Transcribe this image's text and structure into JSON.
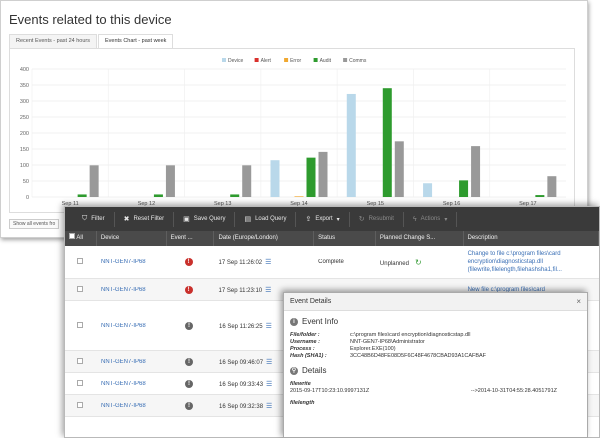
{
  "back_panel": {
    "title": "Events related to this device",
    "tabs": [
      {
        "label": "Recent Events - past 24 hours"
      },
      {
        "label": "Events Chart - past week"
      }
    ],
    "show_all_label": "Show all events fro"
  },
  "chart_data": {
    "type": "bar",
    "categories": [
      "Sep 11",
      "Sep 12",
      "Sep 13",
      "Sep 14",
      "Sep 15",
      "Sep 16",
      "Sep 17"
    ],
    "series": [
      {
        "name": "Device",
        "color": "#b9d8ea",
        "values": [
          0,
          0,
          0,
          115,
          322,
          43,
          0
        ]
      },
      {
        "name": "Alert",
        "color": "#d9302c",
        "values": [
          0,
          0,
          0,
          0,
          0,
          0,
          0
        ]
      },
      {
        "name": "Error",
        "color": "#f0a830",
        "values": [
          0,
          0,
          0,
          2,
          0,
          0,
          0
        ]
      },
      {
        "name": "Audit",
        "color": "#2e9b2e",
        "values": [
          8,
          8,
          8,
          123,
          340,
          52,
          6
        ]
      },
      {
        "name": "Comms",
        "color": "#999999",
        "values": [
          99,
          99,
          99,
          141,
          174,
          159,
          65
        ]
      }
    ],
    "yticks": [
      "0",
      "50",
      "100",
      "150",
      "200",
      "250",
      "300",
      "350",
      "400"
    ],
    "ylim": [
      0,
      400
    ],
    "grid": true,
    "legend_position": "top"
  },
  "toolbar": {
    "filter": "Filter",
    "reset_filter": "Reset Filter",
    "save_query": "Save Query",
    "load_query": "Load Query",
    "export": "Export",
    "resubmit": "Resubmit",
    "actions": "Actions"
  },
  "grid_header": {
    "all": "All",
    "device": "Device",
    "event": "Event ...",
    "date": "Date (Europe/London)",
    "status": "Status",
    "planned": "Planned Change S...",
    "description": "Description"
  },
  "rows": [
    {
      "device": "NNT-GEN7-IP68",
      "severity": "alert",
      "date": "17 Sep 11:26:02",
      "status": "Complete",
      "planned": "Unplanned",
      "description": "Change to file c:\\program files\\card encryption\\diagnosticstap.dll (filewrite,filelength,filehashsha1,fil..."
    },
    {
      "device": "NNT-GEN7-IP68",
      "severity": "alert",
      "date": "17 Sep 11:23:10",
      "status": "",
      "planned": "",
      "description": "New file c:\\program files\\card"
    },
    {
      "device": "NNT-GEN7-IP68",
      "severity": "info",
      "date": "16 Sep 11:26:25",
      "status": "",
      "planned": "",
      "description": ""
    },
    {
      "device": "NNT-GEN7-IP68",
      "severity": "info",
      "date": "16 Sep 09:46:07",
      "status": "",
      "planned": "",
      "description": ""
    },
    {
      "device": "NNT-GEN7-IP68",
      "severity": "info",
      "date": "16 Sep 09:33:43",
      "status": "",
      "planned": "",
      "description": ""
    },
    {
      "device": "NNT-GEN7-IP68",
      "severity": "info",
      "date": "16 Sep 09:32:38",
      "status": "",
      "planned": "",
      "description": ""
    }
  ],
  "dialog": {
    "title": "Event Details",
    "info_title": "Event Info",
    "info": [
      {
        "key": "File/folder :",
        "value": "c:\\program files\\card encryption\\diagnosticstap.dll"
      },
      {
        "key": "Username :",
        "value": "NNT-GEN7-IP68\\Administrator"
      },
      {
        "key": "Process :",
        "value": "Explorer.EXE(100)"
      },
      {
        "key": "Hash (SHA1) :",
        "value": "3CC48B6D48FE08D5F6C48F4678CBAD93A1CAFBAF"
      }
    ],
    "details_title": "Details",
    "details": [
      {
        "name": "filewrite",
        "from": "2015-09-17T10:23:10.9997131Z",
        "to": "-->2014-10-31T04:55:28.4051791Z"
      },
      {
        "name": "filelength",
        "from": "",
        "to": ""
      }
    ]
  }
}
